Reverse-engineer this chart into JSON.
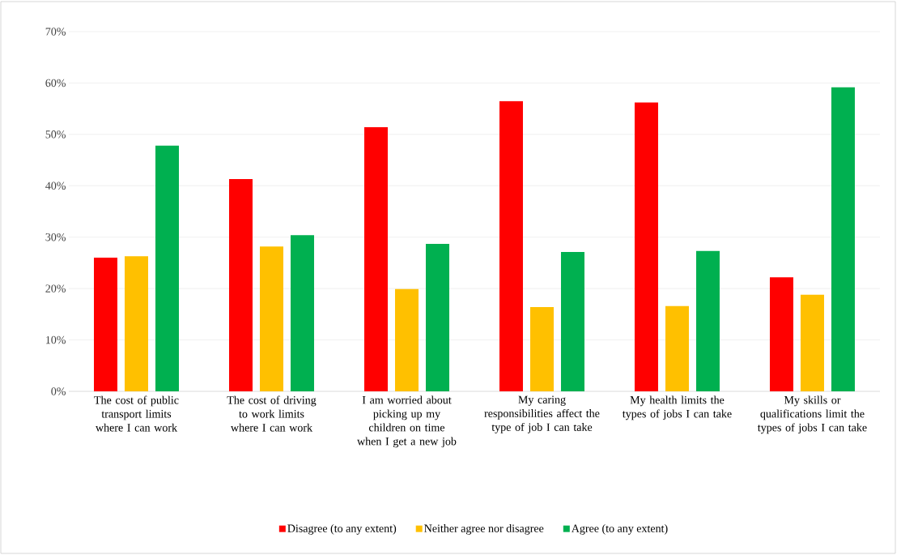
{
  "chart_data": {
    "type": "bar",
    "categories": [
      "The cost of public transport limits where I can work",
      "The cost of driving to work limits where I can work",
      "I am worried about picking up my children on time when I get a new job",
      "My caring responsibilities affect the type of job I can take",
      "My health limits the types of jobs I can take",
      "My skills or qualifications limit the types of jobs I can take"
    ],
    "series": [
      {
        "name": "Disagree (to any extent)",
        "color": "#ff0000",
        "values": [
          0.26,
          0.413,
          0.514,
          0.565,
          0.562,
          0.222
        ]
      },
      {
        "name": "Neither agree nor disagree",
        "color": "#ffc000",
        "values": [
          0.263,
          0.282,
          0.199,
          0.164,
          0.166,
          0.188
        ]
      },
      {
        "name": "Agree (to any extent)",
        "color": "#00b050",
        "values": [
          0.478,
          0.304,
          0.287,
          0.271,
          0.273,
          0.592
        ]
      }
    ],
    "ylim": [
      0,
      0.7
    ],
    "yticks": [
      {
        "value": 0,
        "label": "0%"
      },
      {
        "value": 0.1,
        "label": "10%"
      },
      {
        "value": 0.2,
        "label": "20%"
      },
      {
        "value": 0.3,
        "label": "30%"
      },
      {
        "value": 0.4,
        "label": "40%"
      },
      {
        "value": 0.5,
        "label": "50%"
      },
      {
        "value": 0.6,
        "label": "60%"
      },
      {
        "value": 0.7,
        "label": "70%"
      }
    ],
    "grid": "y",
    "legend": "bottom"
  }
}
